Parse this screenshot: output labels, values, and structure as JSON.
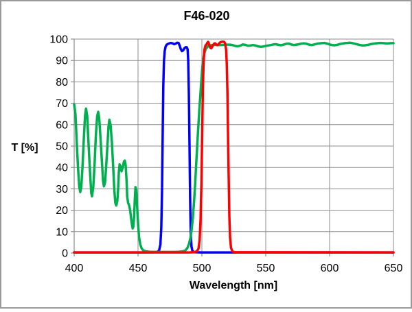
{
  "chart_data": {
    "type": "line",
    "title": "F46-020",
    "xlabel": "Wavelength [nm]",
    "ylabel": "T [%]",
    "xlim": [
      400,
      650
    ],
    "ylim": [
      0,
      100
    ],
    "x_ticks": [
      400,
      450,
      500,
      550,
      600,
      650
    ],
    "y_ticks": [
      0,
      10,
      20,
      30,
      40,
      50,
      60,
      70,
      80,
      90,
      100
    ],
    "grid": true,
    "legend": "none",
    "series": [
      {
        "name": "blue-bandpass",
        "color": "#0000FF",
        "points": [
          [
            400,
            0.3
          ],
          [
            455,
            0.3
          ],
          [
            462,
            0.35
          ],
          [
            465,
            0.5
          ],
          [
            466.5,
            1.2
          ],
          [
            467.5,
            4
          ],
          [
            468.2,
            12
          ],
          [
            468.8,
            30
          ],
          [
            469.3,
            55
          ],
          [
            469.8,
            78
          ],
          [
            470.3,
            90
          ],
          [
            470.9,
            94.5
          ],
          [
            471.6,
            96.5
          ],
          [
            472.5,
            97.4
          ],
          [
            474,
            97.9
          ],
          [
            475.5,
            98.2
          ],
          [
            477,
            98
          ],
          [
            478.3,
            97.6
          ],
          [
            479.5,
            97.9
          ],
          [
            480.7,
            98.3
          ],
          [
            481.7,
            98.2
          ],
          [
            482.6,
            97
          ],
          [
            483.5,
            95.3
          ],
          [
            484.4,
            94.4
          ],
          [
            485.3,
            94.7
          ],
          [
            486.2,
            95.6
          ],
          [
            487.2,
            96.2
          ],
          [
            488.2,
            96.2
          ],
          [
            488.8,
            95.2
          ],
          [
            489.3,
            90
          ],
          [
            489.8,
            75
          ],
          [
            490.3,
            50
          ],
          [
            490.8,
            25
          ],
          [
            491.3,
            9
          ],
          [
            491.9,
            3
          ],
          [
            492.6,
            1
          ],
          [
            494,
            0.4
          ],
          [
            500,
            0.3
          ],
          [
            650,
            0.3
          ]
        ]
      },
      {
        "name": "green-substrate",
        "color": "#00B050",
        "points": [
          [
            400,
            69.5
          ],
          [
            401,
            65
          ],
          [
            402,
            52
          ],
          [
            403,
            40
          ],
          [
            404,
            31
          ],
          [
            404.8,
            28.5
          ],
          [
            405.6,
            31
          ],
          [
            406.5,
            40
          ],
          [
            407.5,
            53
          ],
          [
            408.5,
            64
          ],
          [
            409.3,
            67.5
          ],
          [
            410.2,
            64
          ],
          [
            411.2,
            52
          ],
          [
            412.3,
            39
          ],
          [
            413.4,
            28
          ],
          [
            414,
            26.5
          ],
          [
            415,
            31
          ],
          [
            416,
            42
          ],
          [
            417,
            55
          ],
          [
            418,
            64
          ],
          [
            418.8,
            66
          ],
          [
            419.6,
            63
          ],
          [
            420.5,
            55
          ],
          [
            421.5,
            45
          ],
          [
            422.6,
            34
          ],
          [
            423.3,
            31.2
          ],
          [
            424.2,
            33
          ],
          [
            425,
            40
          ],
          [
            426,
            50
          ],
          [
            426.9,
            59
          ],
          [
            427.6,
            62.3
          ],
          [
            428.5,
            60
          ],
          [
            429.5,
            52
          ],
          [
            430.5,
            41
          ],
          [
            431.4,
            30
          ],
          [
            432.2,
            23.5
          ],
          [
            433,
            22.2
          ],
          [
            433.8,
            24.5
          ],
          [
            434.5,
            31
          ],
          [
            435,
            38
          ],
          [
            435.6,
            41.4
          ],
          [
            436.4,
            40.5
          ],
          [
            437.1,
            38.2
          ],
          [
            438.2,
            40.5
          ],
          [
            439,
            42.8
          ],
          [
            439.6,
            43.2
          ],
          [
            440.3,
            41
          ],
          [
            441,
            34
          ],
          [
            441.5,
            26.5
          ],
          [
            442.2,
            23.5
          ],
          [
            443,
            22.3
          ],
          [
            443.8,
            20
          ],
          [
            444.6,
            16
          ],
          [
            445.3,
            13
          ],
          [
            445.8,
            11.5
          ],
          [
            446.4,
            12.5
          ],
          [
            447,
            18
          ],
          [
            447.5,
            25
          ],
          [
            448,
            30.8
          ],
          [
            448.6,
            29.5
          ],
          [
            449.3,
            22
          ],
          [
            450,
            14
          ],
          [
            450.8,
            7.5
          ],
          [
            451.8,
            4
          ],
          [
            452.8,
            2.2
          ],
          [
            454,
            1.3
          ],
          [
            456,
            0.8
          ],
          [
            459,
            0.6
          ],
          [
            463,
            0.5
          ],
          [
            468,
            0.5
          ],
          [
            473,
            0.5
          ],
          [
            478,
            0.5
          ],
          [
            482,
            0.6
          ],
          [
            485,
            0.8
          ],
          [
            487,
            1.2
          ],
          [
            488.5,
            2.2
          ],
          [
            489.8,
            4
          ],
          [
            491,
            7
          ],
          [
            492,
            11
          ],
          [
            493,
            17
          ],
          [
            494,
            25
          ],
          [
            494.8,
            33
          ],
          [
            495.6,
            42
          ],
          [
            496.4,
            51
          ],
          [
            497.2,
            59
          ],
          [
            498,
            67
          ],
          [
            498.8,
            74
          ],
          [
            499.6,
            81
          ],
          [
            500.4,
            87
          ],
          [
            501.2,
            91
          ],
          [
            502,
            93.5
          ],
          [
            503,
            95.3
          ],
          [
            504.5,
            96.5
          ],
          [
            506,
            97
          ],
          [
            508,
            97.2
          ],
          [
            511,
            97.3
          ],
          [
            514,
            97.2
          ],
          [
            517,
            97.3
          ],
          [
            520,
            97.4
          ],
          [
            522,
            97.4
          ],
          [
            524,
            97.2
          ],
          [
            526,
            96.8
          ],
          [
            528,
            96.6
          ],
          [
            530,
            96.9
          ],
          [
            532,
            97.5
          ],
          [
            534,
            97.3
          ],
          [
            536,
            96.9
          ],
          [
            538,
            97
          ],
          [
            540,
            97.2
          ],
          [
            542,
            97
          ],
          [
            544,
            96.6
          ],
          [
            546,
            96.4
          ],
          [
            548,
            96.5
          ],
          [
            550,
            96.8
          ],
          [
            552,
            97
          ],
          [
            554,
            97.2
          ],
          [
            556,
            97.5
          ],
          [
            558,
            97.6
          ],
          [
            560,
            97.3
          ],
          [
            562,
            97.1
          ],
          [
            564,
            97.4
          ],
          [
            566,
            97.8
          ],
          [
            568,
            97.9
          ],
          [
            570,
            97.5
          ],
          [
            572,
            97.2
          ],
          [
            574,
            97.4
          ],
          [
            576,
            97.6
          ],
          [
            578,
            97.9
          ],
          [
            580,
            98
          ],
          [
            582,
            97.8
          ],
          [
            584,
            97.4
          ],
          [
            586,
            97.2
          ],
          [
            588,
            97.5
          ],
          [
            590,
            97.8
          ],
          [
            592,
            98
          ],
          [
            594,
            98.1
          ],
          [
            596,
            98.2
          ],
          [
            598,
            97.9
          ],
          [
            600,
            97.5
          ],
          [
            602,
            97.2
          ],
          [
            604,
            97.1
          ],
          [
            606,
            97.3
          ],
          [
            608,
            97.7
          ],
          [
            610,
            97.9
          ],
          [
            612,
            98.1
          ],
          [
            614,
            98.2
          ],
          [
            616,
            98.3
          ],
          [
            618,
            98.1
          ],
          [
            620,
            97.8
          ],
          [
            622,
            97.5
          ],
          [
            624,
            97.2
          ],
          [
            626,
            97
          ],
          [
            628,
            97.1
          ],
          [
            630,
            97.3
          ],
          [
            632,
            97.6
          ],
          [
            634,
            97.8
          ],
          [
            636,
            98
          ],
          [
            638,
            98.1
          ],
          [
            640,
            98.2
          ],
          [
            642,
            98.1
          ],
          [
            644,
            98
          ],
          [
            646,
            98
          ],
          [
            648,
            98.1
          ],
          [
            650,
            98.1
          ]
        ]
      },
      {
        "name": "red-bandpass",
        "color": "#FF0000",
        "points": [
          [
            400,
            0.3
          ],
          [
            490,
            0.3
          ],
          [
            494,
            0.4
          ],
          [
            496,
            0.8
          ],
          [
            497.3,
            2
          ],
          [
            498.2,
            6
          ],
          [
            499,
            16
          ],
          [
            499.6,
            32
          ],
          [
            500.2,
            55
          ],
          [
            500.8,
            78
          ],
          [
            501.4,
            90
          ],
          [
            502,
            95
          ],
          [
            502.8,
            97
          ],
          [
            503.6,
            97.5
          ],
          [
            504.3,
            98.3
          ],
          [
            504.9,
            98.7
          ],
          [
            505.5,
            98
          ],
          [
            506.1,
            96.8
          ],
          [
            506.7,
            95.9
          ],
          [
            507.3,
            95.7
          ],
          [
            508,
            96.3
          ],
          [
            508.8,
            97.2
          ],
          [
            509.6,
            97.9
          ],
          [
            510.3,
            98
          ],
          [
            511,
            97.6
          ],
          [
            511.8,
            97.2
          ],
          [
            512.5,
            97.2
          ],
          [
            513.3,
            97.8
          ],
          [
            514.2,
            98.4
          ],
          [
            515.2,
            98.7
          ],
          [
            516.4,
            98.8
          ],
          [
            517.5,
            98.7
          ],
          [
            518.3,
            97.8
          ],
          [
            519,
            95
          ],
          [
            519.5,
            88
          ],
          [
            520,
            75
          ],
          [
            520.5,
            55
          ],
          [
            521,
            34
          ],
          [
            521.5,
            17
          ],
          [
            522.1,
            7
          ],
          [
            522.8,
            2.5
          ],
          [
            523.8,
            0.8
          ],
          [
            525.5,
            0.35
          ],
          [
            650,
            0.3
          ]
        ]
      }
    ]
  },
  "style": {
    "background": "#FFFFFF",
    "border_color": "#999999",
    "grid_color": "#8C8C8C",
    "axis_color": "#8C8C8C",
    "text_color": "#000000",
    "line_width": 3.5,
    "tick_font_size": 16
  }
}
